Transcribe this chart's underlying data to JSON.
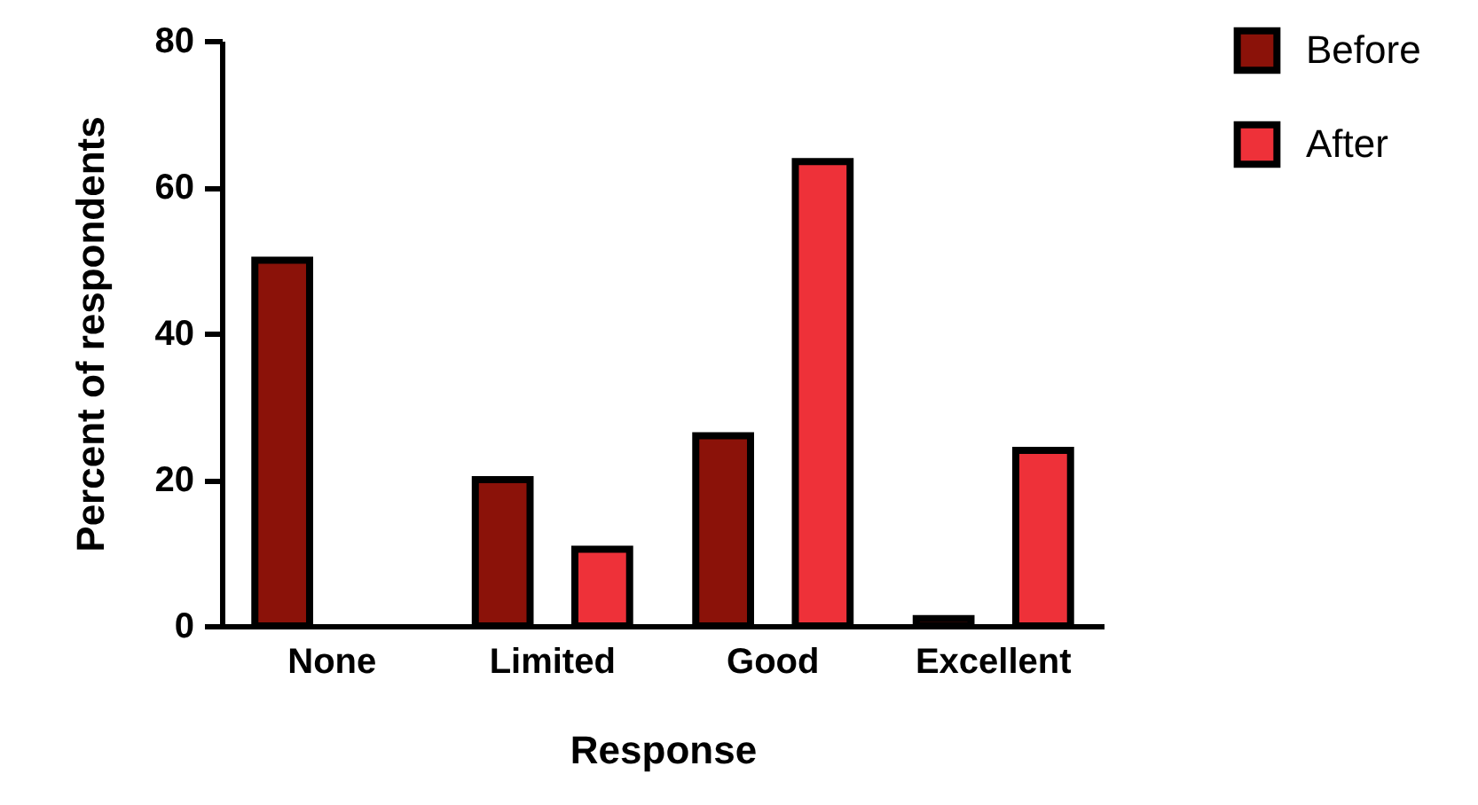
{
  "chart_data": {
    "type": "bar",
    "xlabel": "Response",
    "ylabel": "Percent of respondents",
    "categories": [
      "None",
      "Limited",
      "Good",
      "Excellent"
    ],
    "series": [
      {
        "name": "Before",
        "color": "#8b1209",
        "values": [
          50,
          20,
          26,
          1
        ]
      },
      {
        "name": "After",
        "color": "#ee3139",
        "values": [
          null,
          10.5,
          63.5,
          24
        ]
      }
    ],
    "ylim": [
      0,
      80
    ],
    "yticks": [
      0,
      20,
      40,
      60,
      80
    ],
    "grid": false,
    "legend": "top right"
  }
}
